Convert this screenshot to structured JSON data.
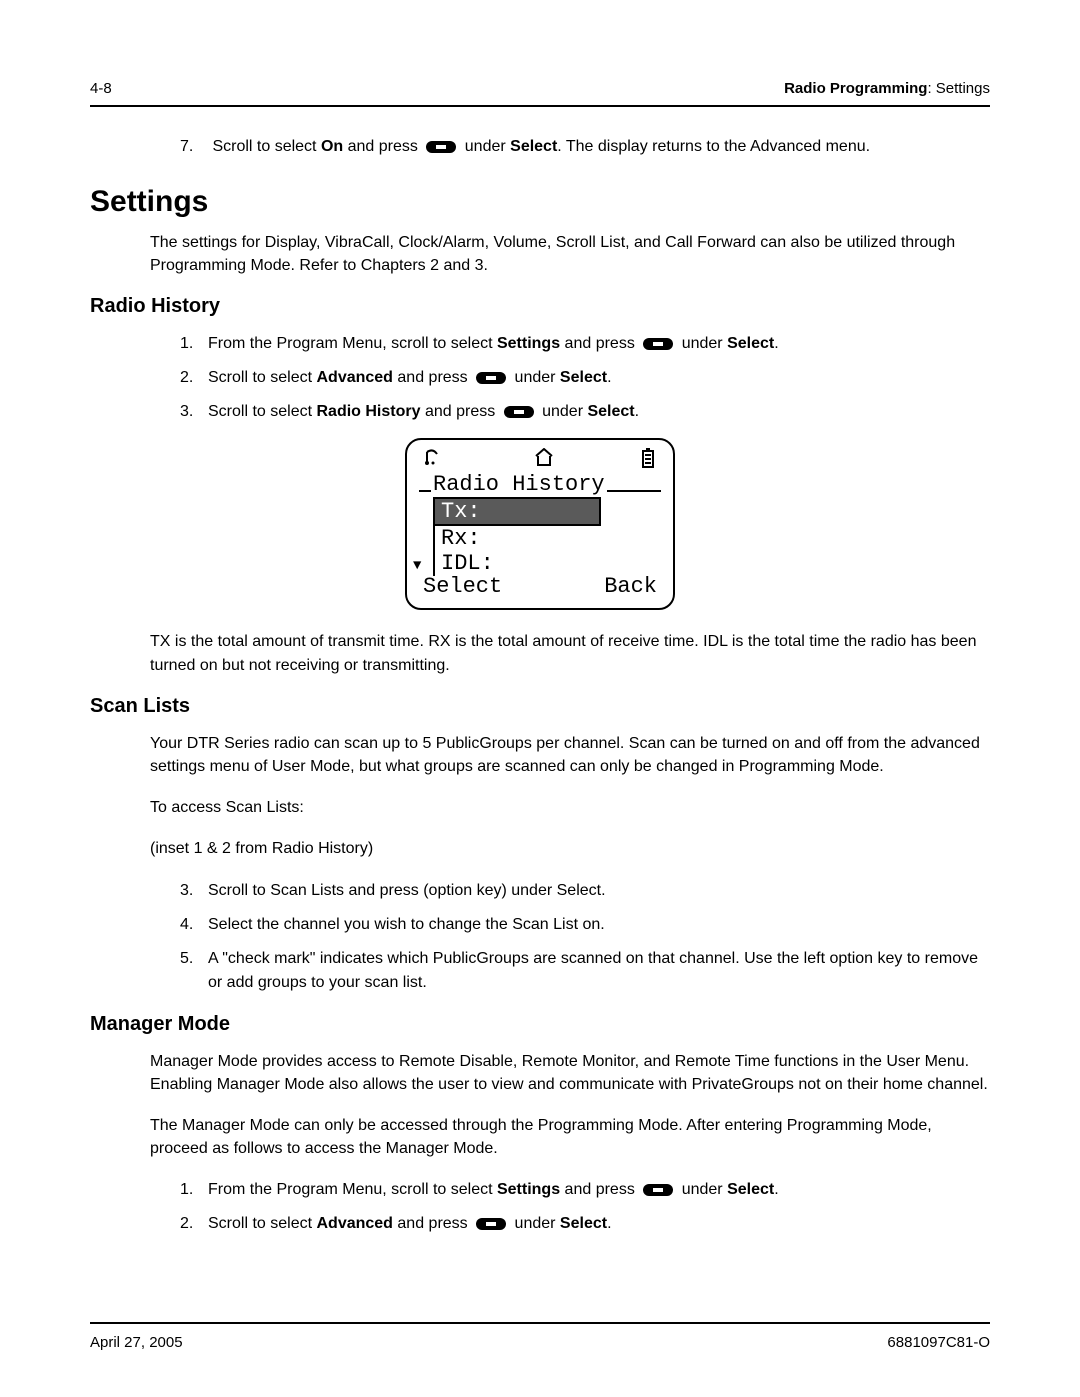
{
  "header": {
    "page_num": "4-8",
    "section_bold": "Radio Programming",
    "section_rest": ": Settings"
  },
  "intro_step": {
    "num": "7.",
    "pre": "Scroll to select ",
    "b1": "On",
    "mid1": " and press ",
    "mid2": " under ",
    "b2": "Select",
    "post": ". The display returns to the Advanced menu."
  },
  "settings": {
    "heading": "Settings",
    "para": "The settings for Display, VibraCall, Clock/Alarm, Volume, Scroll List, and Call Forward can also be utilized through Programming Mode. Refer to Chapters 2 and 3."
  },
  "radio_history": {
    "heading": "Radio History",
    "steps": [
      {
        "num": "1.",
        "pre": "From the Program Menu, scroll to select ",
        "b1": "Settings",
        "mid1": " and press ",
        "mid2": " under ",
        "b2": "Select",
        "post": "."
      },
      {
        "num": "2.",
        "pre": "Scroll to select ",
        "b1": "Advanced",
        "mid1": " and press ",
        "mid2": " under ",
        "b2": "Select",
        "post": "."
      },
      {
        "num": "3.",
        "pre": "Scroll to select ",
        "b1": "Radio History",
        "mid1": " and press ",
        "mid2": " under ",
        "b2": "Select",
        "post": "."
      }
    ],
    "screen": {
      "title": "Radio History",
      "tx": "Tx:",
      "rx": "Rx:",
      "idl": "IDL:",
      "select": "Select",
      "back": "Back"
    },
    "explain": "TX is the total amount of transmit time. RX is the total amount of receive time. IDL is the total time the radio has been turned on but not receiving or transmitting."
  },
  "scan_lists": {
    "heading": "Scan Lists",
    "p1": "Your DTR Series radio can scan up to 5 PublicGroups per channel. Scan can be turned on and off from the advanced settings menu of User Mode, but what groups are scanned can only be changed in Programming Mode.",
    "p2": "To access Scan Lists:",
    "p3": "(inset 1 & 2 from Radio History)",
    "steps": [
      {
        "num": "3.",
        "txt": "Scroll to Scan Lists and press (option key) under Select."
      },
      {
        "num": "4.",
        "txt": "Select the channel you wish to change the Scan List on."
      },
      {
        "num": "5.",
        "txt": "A \"check mark\" indicates which PublicGroups are scanned on that channel. Use the left option key to remove or add groups to your scan list."
      }
    ]
  },
  "manager_mode": {
    "heading": "Manager Mode",
    "p1": "Manager Mode provides access to Remote Disable, Remote Monitor, and Remote Time functions in the User Menu. Enabling Manager Mode also allows the user to view and communicate with PrivateGroups not on their home channel.",
    "p2": "The Manager Mode can only be accessed through the Programming Mode. After entering Programming Mode, proceed as follows to access the Manager Mode.",
    "steps": [
      {
        "num": "1.",
        "pre": "From the Program Menu, scroll to select ",
        "b1": "Settings",
        "mid1": " and press ",
        "mid2": " under ",
        "b2": "Select",
        "post": "."
      },
      {
        "num": "2.",
        "pre": "Scroll to select ",
        "b1": "Advanced",
        "mid1": " and press ",
        "mid2": " under ",
        "b2": "Select",
        "post": "."
      }
    ]
  },
  "footer": {
    "date": "April 27, 2005",
    "doc": "6881097C81-O"
  },
  "icons": {
    "button_color": "#000000"
  }
}
